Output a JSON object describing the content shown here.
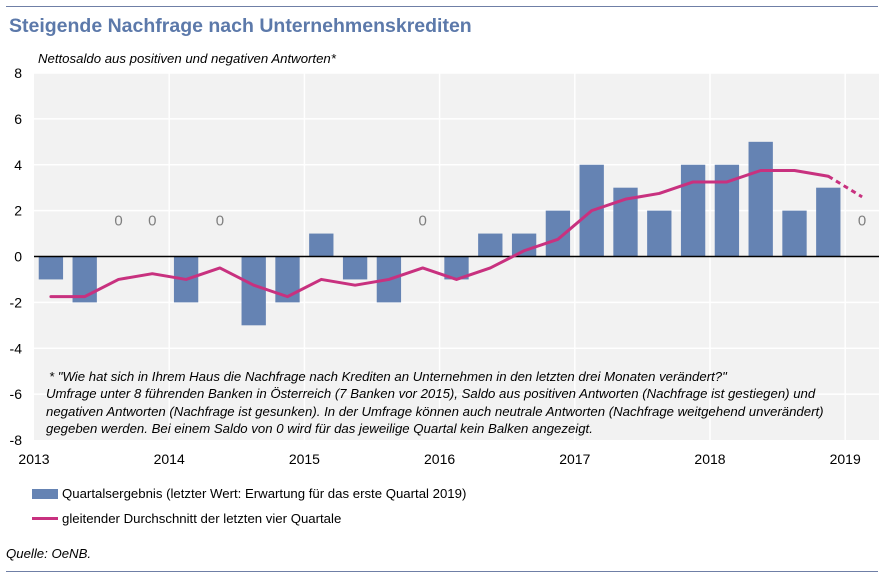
{
  "title": "Steigende Nachfrage nach Unternehmenskrediten",
  "subtitle": "Nettosaldo aus positiven und negativen Antworten*",
  "footnote": [
    "* \"Wie hat sich in Ihrem Haus die Nachfrage nach Krediten an Unternehmen in den letzten drei Monaten verändert?\"",
    "Umfrage unter 8 führenden Banken in Österreich (7 Banken vor 2015), Saldo aus positiven Antworten (Nachfrage ist gestiegen) und",
    "negativen Antworten (Nachfrage ist gesunken). In der Umfrage können auch neutrale Antworten (Nachfrage weitgehend unverändert)",
    "gegeben werden. Bei einem Saldo von 0 wird für das jeweilige Quartal kein Balken angezeigt."
  ],
  "legend": {
    "bar": "Quartalsergebnis (letzter Wert: Erwartung für das erste Quartal 2019)",
    "line": "gleitender Durchschnitt der letzten vier Quartale"
  },
  "source": "Quelle: OeNB.",
  "colors": {
    "bar": "#6583b3",
    "line": "#c8317f",
    "accent": "#5c79aa",
    "grid": "#ffffff",
    "plot_bg": "#f2f2f2"
  },
  "chart_data": {
    "type": "bar",
    "grid": true,
    "legend_position": "bottom",
    "ylim": [
      -8,
      8
    ],
    "yticks": [
      "8",
      "6",
      "4",
      "2",
      "0",
      "-2",
      "-4",
      "-6",
      "-8"
    ],
    "xticks": [
      "2013",
      "2014",
      "2015",
      "2016",
      "2017",
      "2018",
      "2019"
    ],
    "zero_label": "0",
    "categories": [
      "Q1 2013",
      "Q2 2013",
      "Q3 2013",
      "Q4 2013",
      "Q1 2014",
      "Q2 2014",
      "Q3 2014",
      "Q4 2014",
      "Q1 2015",
      "Q2 2015",
      "Q3 2015",
      "Q4 2015",
      "Q1 2016",
      "Q2 2016",
      "Q3 2016",
      "Q4 2016",
      "Q1 2017",
      "Q2 2017",
      "Q3 2017",
      "Q4 2017",
      "Q1 2018",
      "Q2 2018",
      "Q3 2018",
      "Q4 2018",
      "Q1 2019"
    ],
    "series": [
      {
        "name": "Quartalsergebnis (letzter Wert: Erwartung für das erste Quartal 2019)",
        "kind": "bar",
        "values": [
          -1,
          -2,
          0,
          0,
          -2,
          0,
          -3,
          -2,
          1,
          -1,
          -2,
          0,
          -1,
          1,
          1,
          2,
          4,
          3,
          2,
          4,
          4,
          5,
          2,
          3,
          0
        ]
      },
      {
        "name": "gleitender Durchschnitt der letzten vier Quartale",
        "kind": "line",
        "values": [
          -1.75,
          -1.75,
          -1.0,
          -0.75,
          -1.0,
          -0.5,
          -1.25,
          -1.75,
          -1.0,
          -1.25,
          -1.0,
          -0.5,
          -1.0,
          -0.5,
          0.25,
          0.75,
          2.0,
          2.5,
          2.75,
          3.25,
          3.25,
          3.75,
          3.75,
          3.5,
          2.6
        ],
        "dashed_last_segment": true
      }
    ]
  }
}
